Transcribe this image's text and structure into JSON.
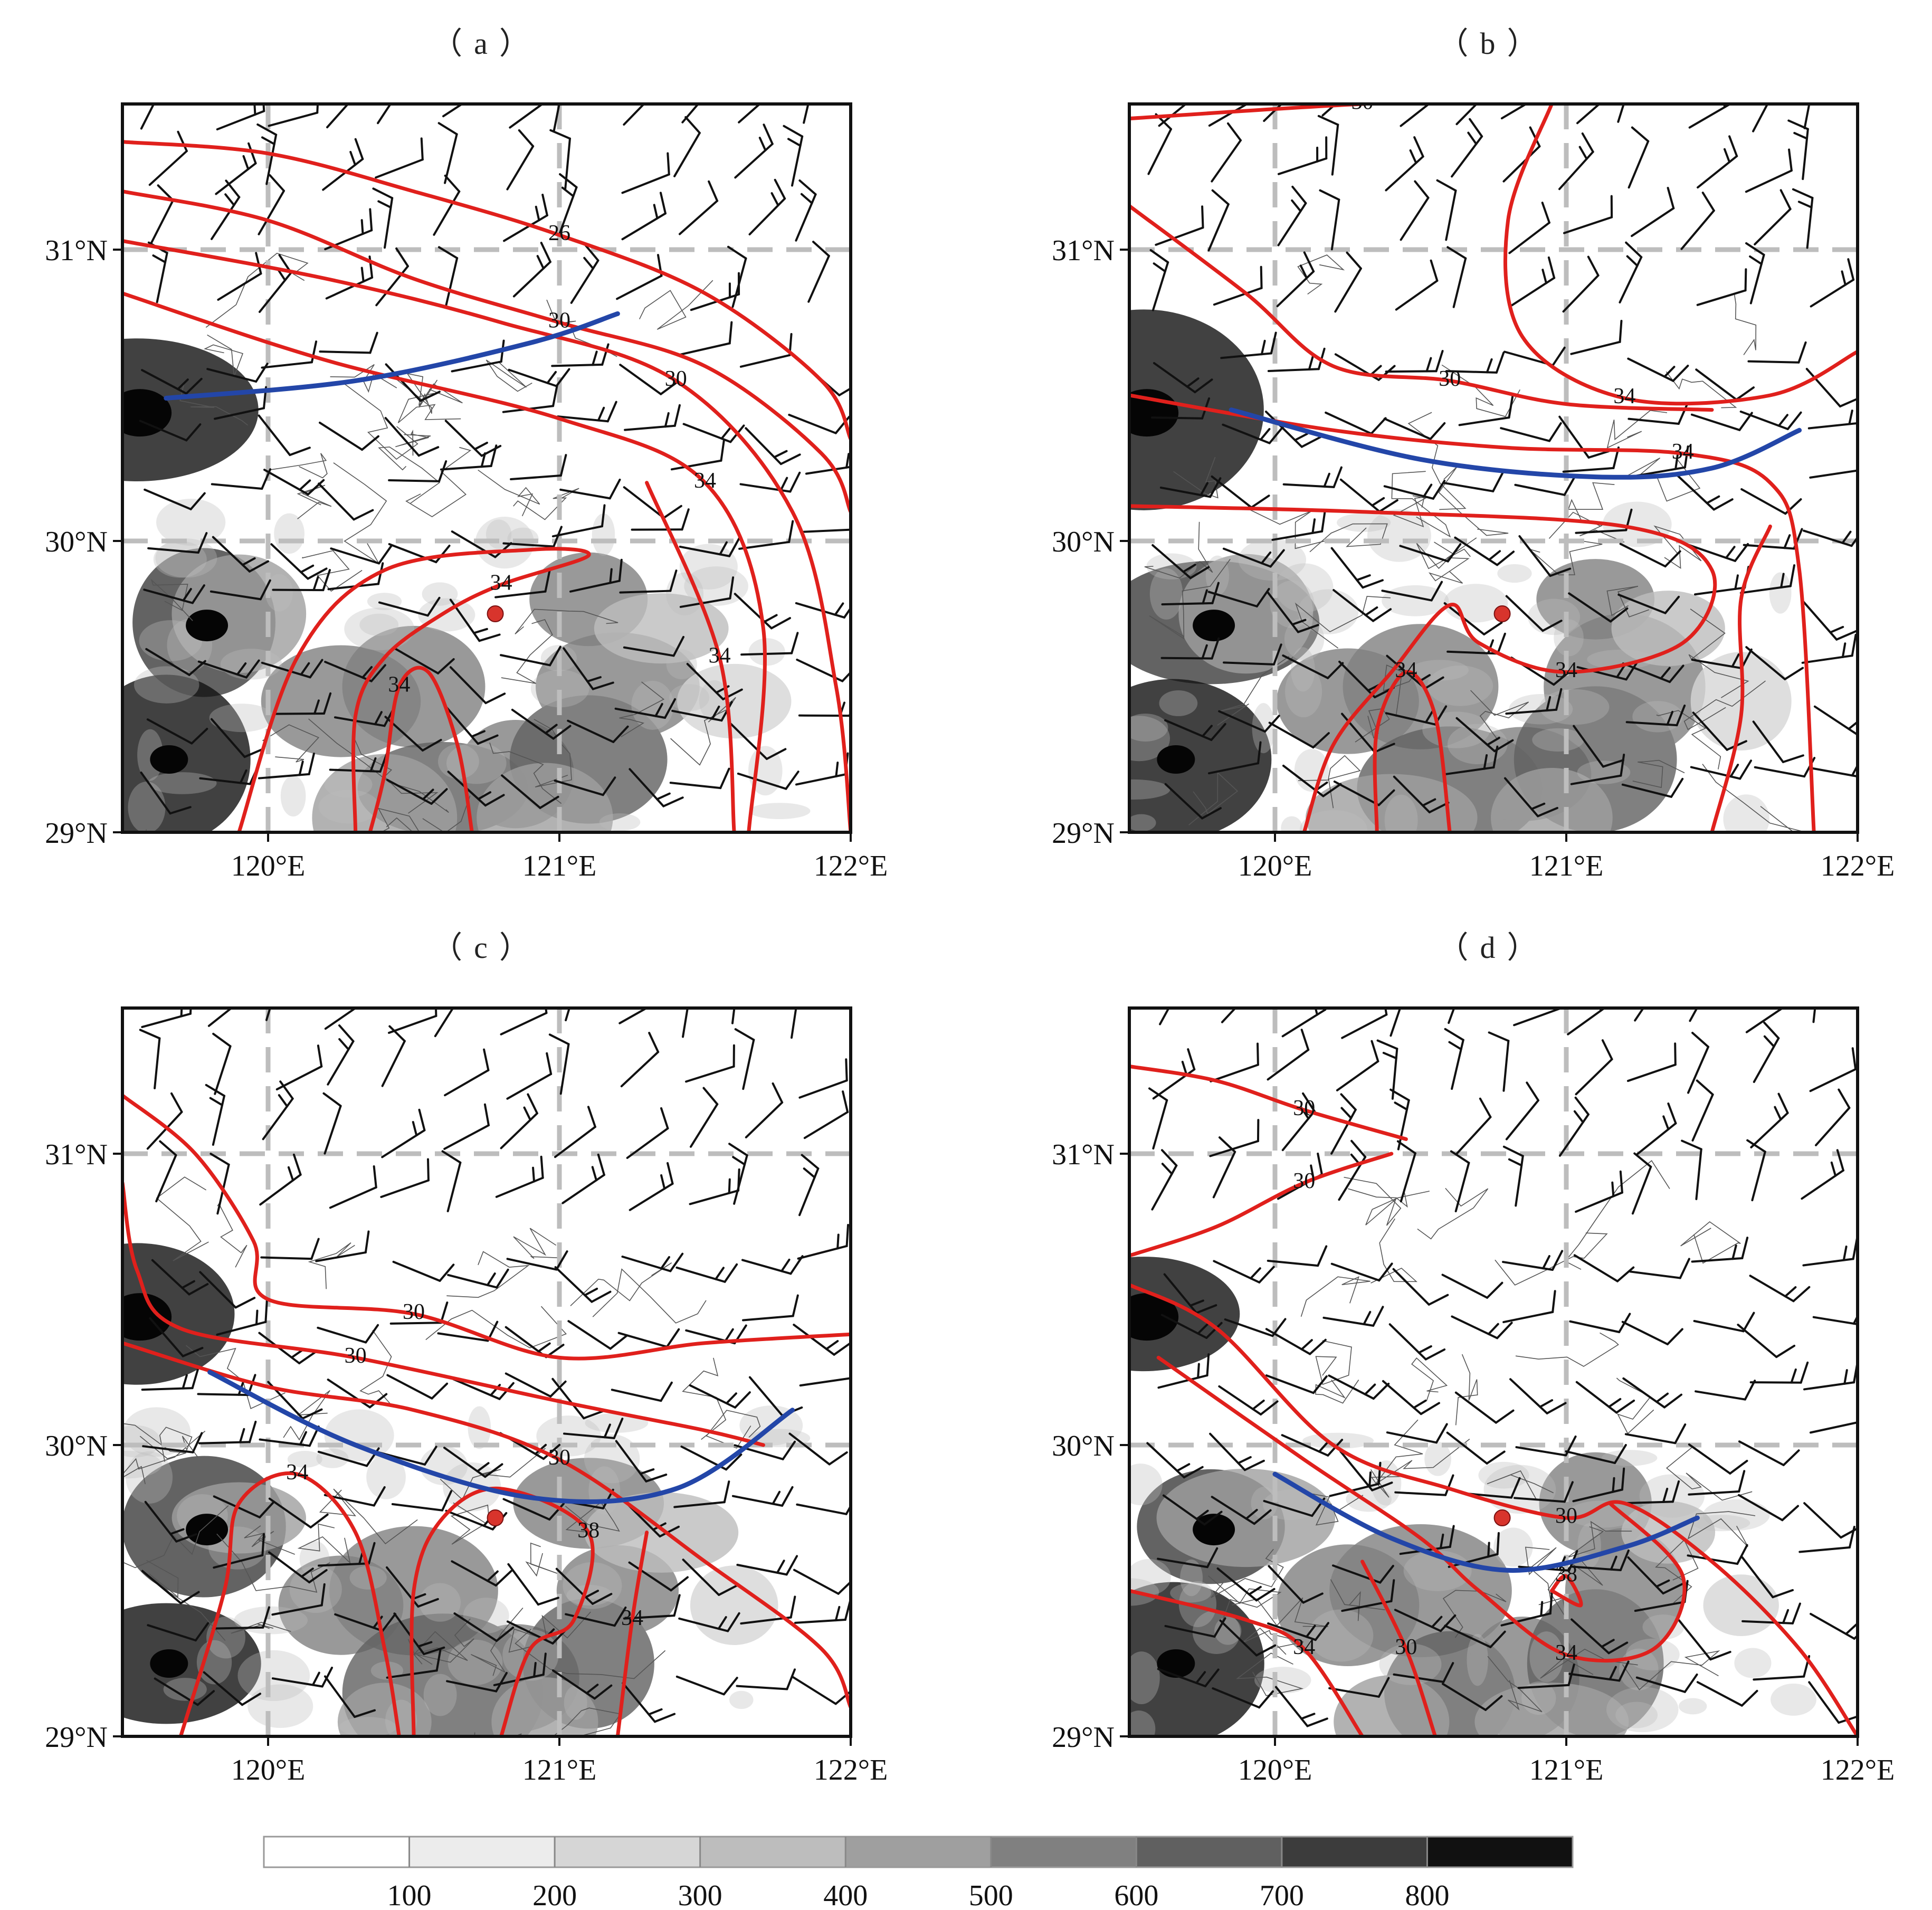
{
  "panels": [
    {
      "id": "a",
      "title": "（a）",
      "contour_labels": [
        "26",
        "30",
        "30",
        "34",
        "34",
        "34",
        "34"
      ],
      "front": [
        [
          119.65,
          30.49
        ],
        [
          120.3,
          30.55
        ],
        [
          120.9,
          30.68
        ],
        [
          121.2,
          30.78
        ]
      ],
      "station": [
        120.78,
        29.75
      ],
      "isolines": [
        [
          [
            119.5,
            31.37
          ],
          [
            120.0,
            31.33
          ],
          [
            120.5,
            31.2
          ],
          [
            121.0,
            31.05
          ],
          [
            121.5,
            30.85
          ],
          [
            121.9,
            30.55
          ],
          [
            122.0,
            30.35
          ]
        ],
        [
          [
            119.5,
            31.2
          ],
          [
            120.0,
            31.1
          ],
          [
            120.5,
            30.9
          ],
          [
            121.0,
            30.75
          ],
          [
            121.5,
            30.6
          ],
          [
            121.9,
            30.3
          ],
          [
            122.0,
            30.1
          ]
        ],
        [
          [
            119.5,
            31.03
          ],
          [
            120.2,
            30.9
          ],
          [
            120.8,
            30.75
          ],
          [
            121.4,
            30.55
          ],
          [
            121.8,
            30.1
          ],
          [
            121.95,
            29.5
          ],
          [
            122.0,
            29.0
          ]
        ],
        [
          [
            119.5,
            30.85
          ],
          [
            120.2,
            30.62
          ],
          [
            121.0,
            30.42
          ],
          [
            121.5,
            30.2
          ],
          [
            121.7,
            29.7
          ],
          [
            121.65,
            29.0
          ]
        ],
        [
          [
            119.9,
            29.0
          ],
          [
            120.1,
            29.6
          ],
          [
            120.4,
            29.9
          ],
          [
            120.9,
            29.97
          ],
          [
            121.1,
            29.95
          ],
          [
            120.8,
            29.85
          ],
          [
            120.6,
            29.75
          ],
          [
            120.4,
            29.6
          ],
          [
            120.3,
            29.4
          ],
          [
            120.3,
            29.0
          ]
        ],
        [
          [
            121.6,
            29.0
          ],
          [
            121.55,
            29.6
          ],
          [
            121.3,
            30.2
          ]
        ],
        [
          [
            120.7,
            29.0
          ],
          [
            120.65,
            29.3
          ],
          [
            120.55,
            29.55
          ],
          [
            120.45,
            29.5
          ],
          [
            120.4,
            29.2
          ],
          [
            120.35,
            29.0
          ]
        ]
      ]
    },
    {
      "id": "b",
      "title": "（b）",
      "contour_labels": [
        "30",
        "30",
        "34",
        "34",
        "34",
        "34"
      ],
      "front": [
        [
          119.85,
          30.45
        ],
        [
          120.5,
          30.28
        ],
        [
          121.1,
          30.22
        ],
        [
          121.5,
          30.25
        ],
        [
          121.8,
          30.38
        ]
      ],
      "station": [
        120.78,
        29.75
      ],
      "isolines": [
        [
          [
            119.5,
            31.45
          ],
          [
            120.3,
            31.5
          ],
          [
            120.95,
            31.52
          ]
        ],
        [
          [
            119.5,
            31.15
          ],
          [
            119.9,
            30.85
          ],
          [
            120.2,
            30.6
          ],
          [
            120.6,
            30.55
          ],
          [
            121.0,
            30.47
          ],
          [
            121.5,
            30.45
          ]
        ],
        [
          [
            120.95,
            31.5
          ],
          [
            120.8,
            31.1
          ],
          [
            120.85,
            30.7
          ],
          [
            121.2,
            30.49
          ],
          [
            121.7,
            30.5
          ],
          [
            122.0,
            30.65
          ]
        ],
        [
          [
            119.5,
            30.5
          ],
          [
            120.2,
            30.38
          ],
          [
            120.8,
            30.32
          ],
          [
            121.4,
            30.3
          ],
          [
            121.7,
            30.2
          ],
          [
            121.8,
            29.9
          ],
          [
            121.85,
            29.0
          ]
        ],
        [
          [
            119.5,
            30.12
          ],
          [
            120.3,
            30.1
          ],
          [
            121.2,
            30.05
          ],
          [
            121.5,
            29.9
          ],
          [
            121.4,
            29.65
          ],
          [
            121.0,
            29.55
          ],
          [
            120.7,
            29.65
          ],
          [
            120.6,
            29.78
          ],
          [
            120.4,
            29.55
          ],
          [
            120.2,
            29.3
          ],
          [
            120.1,
            29.0
          ]
        ],
        [
          [
            120.6,
            29.0
          ],
          [
            120.55,
            29.4
          ],
          [
            120.45,
            29.55
          ],
          [
            120.35,
            29.35
          ],
          [
            120.35,
            29.0
          ]
        ],
        [
          [
            121.5,
            29.0
          ],
          [
            121.6,
            29.4
          ],
          [
            121.6,
            29.8
          ],
          [
            121.7,
            30.05
          ]
        ]
      ]
    },
    {
      "id": "c",
      "title": "（c）",
      "contour_labels": [
        "30",
        "30",
        "30",
        "34",
        "38",
        "34"
      ],
      "front": [
        [
          119.8,
          30.25
        ],
        [
          120.3,
          30.0
        ],
        [
          120.9,
          29.82
        ],
        [
          121.4,
          29.85
        ],
        [
          121.8,
          30.12
        ]
      ],
      "station": [
        120.78,
        29.75
      ],
      "isolines": [
        [
          [
            119.5,
            31.2
          ],
          [
            119.75,
            31.0
          ],
          [
            119.95,
            30.7
          ],
          [
            120.0,
            30.5
          ],
          [
            120.5,
            30.45
          ],
          [
            121.0,
            30.3
          ],
          [
            121.5,
            30.35
          ],
          [
            122.0,
            30.38
          ]
        ],
        [
          [
            119.5,
            30.9
          ],
          [
            119.55,
            30.6
          ],
          [
            119.7,
            30.4
          ],
          [
            120.3,
            30.3
          ],
          [
            121.0,
            30.15
          ],
          [
            121.5,
            30.05
          ],
          [
            121.7,
            30.0
          ]
        ],
        [
          [
            119.5,
            30.35
          ],
          [
            120.0,
            30.2
          ],
          [
            120.5,
            30.12
          ],
          [
            121.0,
            29.95
          ],
          [
            121.5,
            29.6
          ],
          [
            121.9,
            29.3
          ],
          [
            122.0,
            29.1
          ]
        ],
        [
          [
            119.7,
            29.0
          ],
          [
            119.85,
            29.5
          ],
          [
            119.9,
            29.8
          ],
          [
            120.1,
            29.9
          ],
          [
            120.3,
            29.7
          ],
          [
            120.4,
            29.3
          ],
          [
            120.45,
            29.0
          ]
        ],
        [
          [
            120.5,
            29.0
          ],
          [
            120.5,
            29.5
          ],
          [
            120.6,
            29.75
          ],
          [
            120.8,
            29.85
          ],
          [
            121.1,
            29.7
          ],
          [
            121.05,
            29.4
          ],
          [
            120.9,
            29.3
          ],
          [
            120.8,
            29.0
          ]
        ],
        [
          [
            121.2,
            29.0
          ],
          [
            121.25,
            29.4
          ],
          [
            121.3,
            29.7
          ]
        ]
      ]
    },
    {
      "id": "d",
      "title": "（d）",
      "contour_labels": [
        "30",
        "30",
        "30",
        "34",
        "34",
        "30",
        "38"
      ],
      "front": [
        [
          120.0,
          29.9
        ],
        [
          120.4,
          29.68
        ],
        [
          120.8,
          29.57
        ],
        [
          121.2,
          29.65
        ],
        [
          121.45,
          29.75
        ]
      ],
      "station": [
        120.78,
        29.75
      ],
      "isolines": [
        [
          [
            119.5,
            31.3
          ],
          [
            119.8,
            31.25
          ],
          [
            120.1,
            31.15
          ],
          [
            120.45,
            31.05
          ]
        ],
        [
          [
            119.5,
            30.65
          ],
          [
            119.8,
            30.75
          ],
          [
            120.1,
            30.9
          ],
          [
            120.4,
            31.0
          ]
        ],
        [
          [
            119.5,
            30.55
          ],
          [
            119.8,
            30.4
          ],
          [
            120.2,
            30.0
          ],
          [
            120.6,
            29.85
          ],
          [
            121.0,
            29.75
          ],
          [
            121.2,
            29.8
          ],
          [
            121.5,
            29.6
          ],
          [
            121.8,
            29.3
          ],
          [
            122.0,
            29.0
          ]
        ],
        [
          [
            119.6,
            30.3
          ],
          [
            120.1,
            29.95
          ],
          [
            120.5,
            29.68
          ],
          [
            120.7,
            29.5
          ],
          [
            121.0,
            29.28
          ],
          [
            121.3,
            29.3
          ],
          [
            121.4,
            29.55
          ],
          [
            121.15,
            29.8
          ]
        ],
        [
          [
            119.5,
            29.5
          ],
          [
            119.9,
            29.4
          ],
          [
            120.1,
            29.3
          ],
          [
            120.3,
            29.0
          ]
        ],
        [
          [
            120.55,
            29.0
          ],
          [
            120.45,
            29.3
          ],
          [
            120.3,
            29.6
          ]
        ],
        [
          [
            120.95,
            29.5
          ],
          [
            121.05,
            29.45
          ],
          [
            121.0,
            29.55
          ],
          [
            120.95,
            29.5
          ]
        ]
      ]
    }
  ],
  "axes": {
    "lat_ticks": [
      "29°N",
      "30°N",
      "31°N"
    ],
    "lon_ticks": [
      "120°E",
      "121°E",
      "122°E"
    ],
    "lon_range": [
      119.5,
      122.0
    ],
    "lat_range": [
      29.0,
      31.5
    ]
  },
  "colorbar": {
    "labels": [
      "100",
      "200",
      "300",
      "400",
      "500",
      "600",
      "700",
      "800"
    ],
    "colors": [
      "#ffffff",
      "#ececec",
      "#d6d6d6",
      "#bdbdbd",
      "#9f9f9f",
      "#808080",
      "#606060",
      "#3c3c3c",
      "#111111"
    ]
  },
  "colors": {
    "contour": "#e0201c",
    "front": "#2346a8",
    "grid": "#bdbdbd",
    "barb": "#111111",
    "boundary": "#555555",
    "station": "#d8342c"
  },
  "terrain": [
    {
      "lon": 119.55,
      "lat": 30.45,
      "v": 800
    },
    {
      "lon": 119.78,
      "lat": 29.72,
      "v": 700
    },
    {
      "lon": 119.65,
      "lat": 29.25,
      "v": 800
    },
    {
      "lon": 119.9,
      "lat": 29.75,
      "v": 400
    },
    {
      "lon": 120.25,
      "lat": 29.45,
      "v": 450
    },
    {
      "lon": 120.5,
      "lat": 29.5,
      "v": 500
    },
    {
      "lon": 120.6,
      "lat": 29.15,
      "v": 550
    },
    {
      "lon": 120.85,
      "lat": 29.2,
      "v": 450
    },
    {
      "lon": 121.1,
      "lat": 29.25,
      "v": 550
    },
    {
      "lon": 121.2,
      "lat": 29.5,
      "v": 450
    },
    {
      "lon": 121.1,
      "lat": 29.8,
      "v": 450
    },
    {
      "lon": 121.35,
      "lat": 29.7,
      "v": 300
    },
    {
      "lon": 120.4,
      "lat": 29.05,
      "v": 350
    },
    {
      "lon": 120.95,
      "lat": 29.05,
      "v": 350
    },
    {
      "lon": 121.6,
      "lat": 29.45,
      "v": 200
    }
  ]
}
